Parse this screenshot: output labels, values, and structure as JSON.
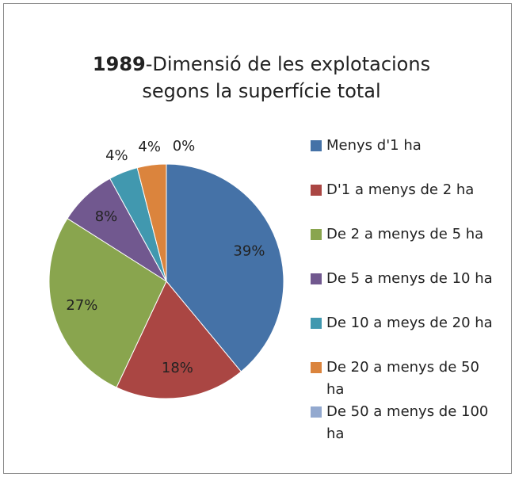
{
  "chart_data": {
    "type": "pie",
    "title": {
      "year": "1989",
      "line1": "-Dimensió de les explotacions",
      "line2": "segons la superfície total"
    },
    "categories": [
      "Menys d'1 ha",
      "D'1 a menys de 2 ha",
      "De 2 a menys de 5 ha",
      "De 5 a menys de 10 ha",
      "De 10 a meys de 20 ha",
      "De 20 a menys de 50 ha",
      "De 50 a menys de 100 ha"
    ],
    "values": [
      39,
      18,
      27,
      8,
      4,
      4,
      0
    ],
    "value_labels": [
      "39%",
      "18%",
      "27%",
      "8%",
      "4%",
      "4%",
      "0%"
    ],
    "colors": [
      "#4572a7",
      "#aa4643",
      "#89a54e",
      "#71588f",
      "#4198af",
      "#db843d",
      "#93a9cf"
    ],
    "legend": "right"
  }
}
